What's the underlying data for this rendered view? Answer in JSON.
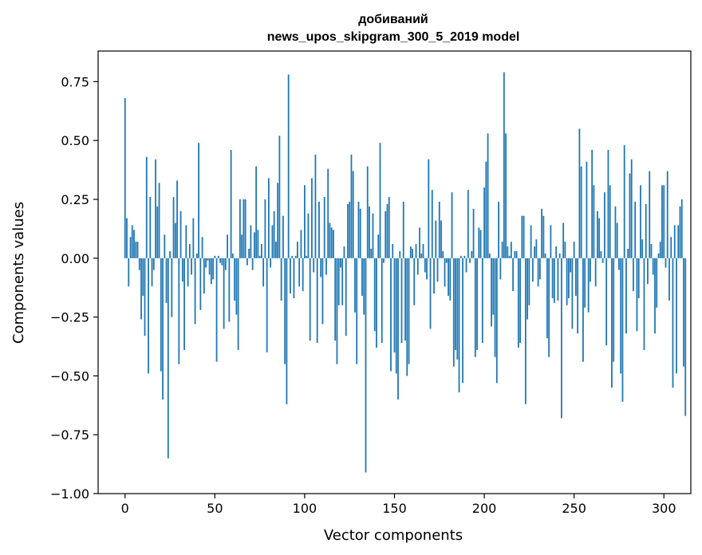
{
  "chart_data": {
    "type": "bar",
    "title": "добиваний",
    "subtitle": "news_upos_skipgram_300_5_2019 model",
    "xlabel": "Vector components",
    "ylabel": "Components values",
    "xlim": [
      -15,
      315
    ],
    "ylim": [
      -1.0,
      0.88
    ],
    "xticks": [
      0,
      50,
      100,
      150,
      200,
      250,
      300
    ],
    "xtick_labels": [
      "0",
      "50",
      "100",
      "150",
      "200",
      "250",
      "300"
    ],
    "yticks": [
      -1.0,
      -0.75,
      -0.5,
      -0.25,
      0.0,
      0.25,
      0.5,
      0.75
    ],
    "ytick_labels": [
      "−1.00",
      "−0.75",
      "−0.50",
      "−0.25",
      "0.00",
      "0.25",
      "0.50",
      "0.75"
    ],
    "grid": false,
    "bar_color": "#1f77b4",
    "series": [
      {
        "values": [
          0.68,
          0.17,
          -0.12,
          0.09,
          0.14,
          0.12,
          0.07,
          0.07,
          -0.05,
          -0.26,
          -0.16,
          -0.33,
          0.43,
          -0.49,
          0.26,
          -0.12,
          -0.05,
          0.42,
          0.22,
          0.32,
          -0.48,
          -0.6,
          0.1,
          -0.19,
          -0.85,
          0.03,
          -0.25,
          0.26,
          0.15,
          0.33,
          -0.45,
          0.2,
          -0.1,
          -0.39,
          0.14,
          -0.12,
          0.06,
          -0.07,
          0.17,
          -0.28,
          0.02,
          0.49,
          -0.22,
          0.09,
          -0.15,
          -0.04,
          -0.01,
          -0.07,
          -0.11,
          -0.09,
          0.01,
          -0.44,
          0.01,
          -0.02,
          -0.03,
          -0.3,
          -0.05,
          0.1,
          -0.27,
          0.46,
          0.02,
          -0.18,
          -0.24,
          -0.39,
          0.25,
          0.1,
          0.25,
          0.25,
          -0.03,
          0.04,
          0.14,
          -0.05,
          0.11,
          0.39,
          0.12,
          0.01,
          0.06,
          -0.12,
          0.25,
          -0.4,
          0.34,
          -0.04,
          0.14,
          0.2,
          0.07,
          0.32,
          0.52,
          -0.18,
          0.18,
          -0.45,
          -0.62,
          0.78,
          -0.15,
          0.01,
          -0.17,
          0.01,
          0.07,
          -0.12,
          0.12,
          -0.14,
          0.31,
          0.01,
          0.19,
          -0.35,
          0.34,
          -0.06,
          0.44,
          -0.36,
          0.24,
          -0.08,
          -0.28,
          0.26,
          -0.07,
          0.38,
          0.15,
          0.13,
          0.12,
          -0.35,
          -0.45,
          -0.2,
          -0.04,
          -0.2,
          0.05,
          -0.33,
          0.23,
          0.24,
          0.44,
          0.37,
          -0.23,
          -0.45,
          0.24,
          0.21,
          -0.16,
          -0.24,
          -0.91,
          0.39,
          0.22,
          0.04,
          0.19,
          -0.31,
          -0.38,
          0.1,
          0.49,
          -0.36,
          -0.02,
          0.2,
          0.23,
          0.26,
          -0.48,
          0.06,
          -0.4,
          -0.49,
          -0.6,
          0.03,
          -0.36,
          0.24,
          -0.35,
          -0.5,
          -0.45,
          0.05,
          0.04,
          -0.2,
          0.06,
          -0.07,
          0.13,
          0.02,
          0.06,
          -0.06,
          -0.09,
          0.42,
          -0.3,
          0.29,
          -0.15,
          0.16,
          -0.1,
          0.24,
          0.16,
          0.03,
          -0.12,
          -0.02,
          -0.16,
          -0.18,
          0.28,
          -0.46,
          -0.39,
          -0.43,
          -0.57,
          0.01,
          -0.53,
          0.01,
          -0.06,
          0.29,
          -0.02,
          0.03,
          0.21,
          -0.42,
          -0.39,
          0.13,
          0.12,
          -0.36,
          0.3,
          0.41,
          0.53,
          0.02,
          -0.29,
          -0.24,
          -0.42,
          -0.53,
          0.24,
          -0.09,
          0.07,
          0.79,
          0.53,
          0.05,
          0.01,
          0.07,
          -0.14,
          0.03,
          0.03,
          -0.38,
          -0.36,
          0.18,
          0.18,
          -0.62,
          -0.26,
          -0.2,
          0.14,
          -0.1,
          0.05,
          0.08,
          -0.12,
          -0.09,
          0.21,
          0.18,
          0.02,
          -0.34,
          -0.42,
          0.14,
          -0.17,
          -0.19,
          0.05,
          -0.18,
          0.02,
          -0.68,
          0.15,
          0.07,
          -0.2,
          -0.17,
          -0.06,
          -0.3,
          0.07,
          -0.16,
          -0.32,
          0.55,
          0.39,
          -0.44,
          -0.21,
          0.41,
          -0.23,
          -0.1,
          0.46,
          0.31,
          -0.12,
          0.2,
          0.17,
          0.03,
          -0.02,
          0.28,
          -0.37,
          0.46,
          0.31,
          -0.55,
          -0.44,
          0.22,
          0.15,
          -0.05,
          -0.49,
          -0.61,
          0.48,
          -0.32,
          0.04,
          0.36,
          0.42,
          -0.14,
          0.24,
          -0.31,
          -0.17,
          0.31,
          0.08,
          -0.39,
          0.23,
          -0.11,
          0.37,
          0.06,
          -0.07,
          -0.32,
          -0.21,
          0.02,
          0.07,
          0.31,
          0.31,
          -0.04,
          0.37,
          -0.18,
          0.09,
          -0.55,
          0.14,
          -0.49,
          0.14,
          0.22,
          0.25,
          -0.46,
          -0.67
        ]
      }
    ]
  }
}
